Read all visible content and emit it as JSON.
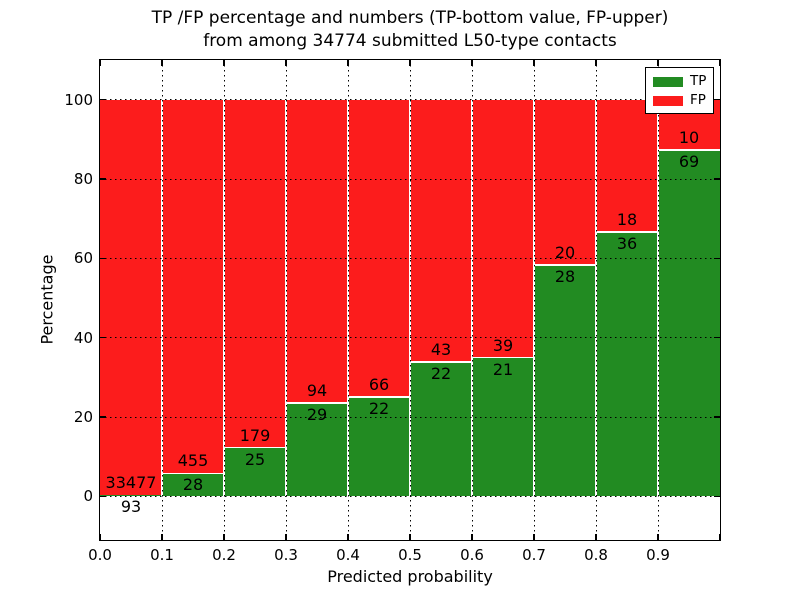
{
  "figure": {
    "title_line1": "TP /FP percentage and numbers (TP-bottom value, FP-upper)",
    "title_line2": "from among 34774 submitted L50-type contacts"
  },
  "chart_data": {
    "type": "bar",
    "stacked": true,
    "normalized_to_percent": true,
    "title": "TP /FP percentage and numbers (TP-bottom value, FP-upper) from among 34774 submitted L50-type contacts",
    "xlabel": "Predicted probability",
    "ylabel": "Percentage",
    "total_submitted": 34774,
    "x_bin_edges": [
      0.0,
      0.1,
      0.2,
      0.3,
      0.4,
      0.5,
      0.6,
      0.7,
      0.8,
      0.9,
      1.0
    ],
    "xtick_labels": [
      "0.0",
      "0.1",
      "0.2",
      "0.3",
      "0.4",
      "0.5",
      "0.6",
      "0.7",
      "0.8",
      "0.9"
    ],
    "ytick_values": [
      0,
      20,
      40,
      60,
      80,
      100
    ],
    "ylim": [
      -11,
      110
    ],
    "xlim": [
      0.0,
      1.0
    ],
    "grid": true,
    "series": [
      {
        "name": "TP",
        "color": "#228b22",
        "counts": [
          93,
          28,
          25,
          29,
          22,
          22,
          21,
          28,
          36,
          69
        ]
      },
      {
        "name": "FP",
        "color": "#fc1c1c",
        "counts": [
          33477,
          455,
          179,
          94,
          66,
          43,
          39,
          20,
          18,
          10
        ]
      }
    ],
    "tp_percent_of_bin": [
      0.28,
      5.8,
      12.25,
      23.58,
      25.0,
      33.85,
      35.0,
      58.33,
      66.67,
      87.34
    ],
    "legend": {
      "position": "upper-right",
      "entries": [
        {
          "label": "TP",
          "color": "#228b22"
        },
        {
          "label": "FP",
          "color": "#fc1c1c"
        }
      ]
    }
  }
}
